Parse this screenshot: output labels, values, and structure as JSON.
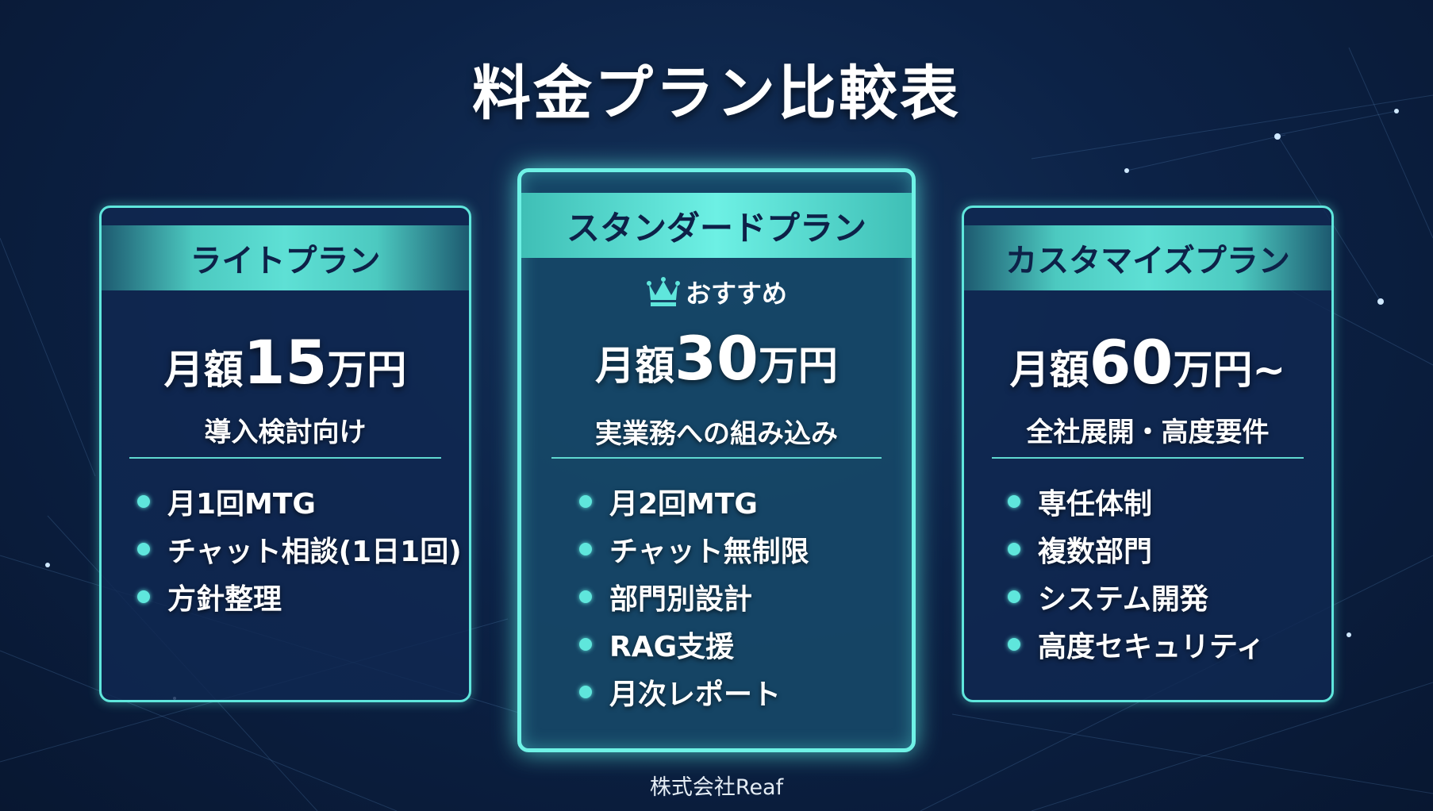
{
  "title": "料金プラン比較表",
  "accent_color": "#5fe6dc",
  "plans": [
    {
      "name": "ライトプラン",
      "price_prefix": "月額",
      "price_number": "15",
      "price_suffix": "万円",
      "tagline": "導入検討向け",
      "features": [
        "月1回MTG",
        "チャット相談(1日1回)",
        "方針整理"
      ]
    },
    {
      "name": "スタンダードプラン",
      "badge": "おすすめ",
      "badge_icon": "crown-icon",
      "price_prefix": "月額",
      "price_number": "30",
      "price_suffix": "万円",
      "tagline": "実業務への組み込み",
      "features": [
        "月2回MTG",
        "チャット無制限",
        "部門別設計",
        "RAG支援",
        "月次レポート"
      ]
    },
    {
      "name": "カスタマイズプラン",
      "price_prefix": "月額",
      "price_number": "60",
      "price_suffix": "万円~",
      "tagline": "全社展開・高度要件",
      "features": [
        "専任体制",
        "複数部門",
        "システム開発",
        "高度セキュリティ"
      ]
    }
  ],
  "footer": "株式会社Reaf"
}
